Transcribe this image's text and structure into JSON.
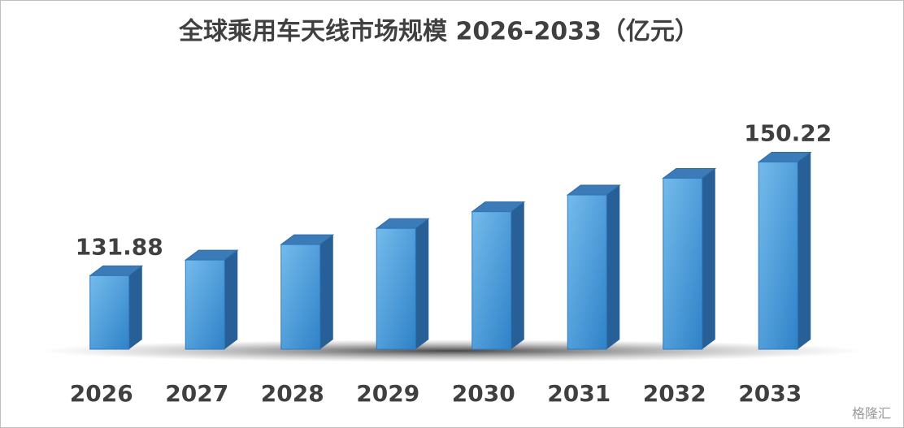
{
  "chart_data": {
    "type": "bar3d",
    "title": "全球乘用车天线市场规模 2026-2033（亿元）",
    "categories": [
      "2026",
      "2027",
      "2028",
      "2029",
      "2030",
      "2031",
      "2032",
      "2033"
    ],
    "values": [
      131.88,
      134.4,
      136.9,
      139.5,
      142.2,
      144.9,
      147.6,
      150.22
    ],
    "value_labels": [
      "131.88",
      null,
      null,
      null,
      null,
      null,
      null,
      "150.22"
    ],
    "color": "#4a9ee0",
    "ylim": [
      120,
      155
    ],
    "watermark": "格隆汇"
  }
}
